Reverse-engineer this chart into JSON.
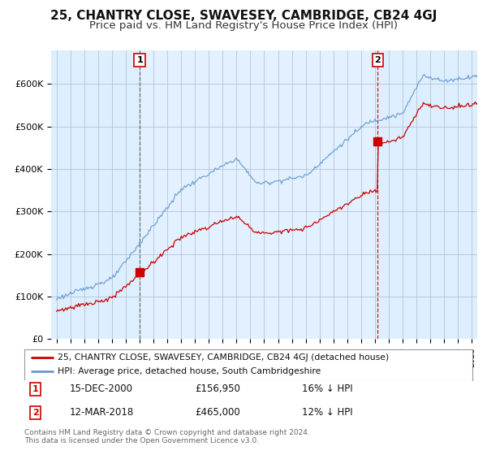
{
  "title": "25, CHANTRY CLOSE, SWAVESEY, CAMBRIDGE, CB24 4GJ",
  "subtitle": "Price paid vs. HM Land Registry's House Price Index (HPI)",
  "ylim": [
    0,
    680000
  ],
  "yticks": [
    0,
    100000,
    200000,
    300000,
    400000,
    500000,
    600000
  ],
  "ytick_labels": [
    "£0",
    "£100K",
    "£200K",
    "£300K",
    "£400K",
    "£500K",
    "£600K"
  ],
  "sale1_date": 2001.0,
  "sale1_price": 156950,
  "sale2_date": 2018.21,
  "sale2_price": 465000,
  "line_color_property": "#cc0000",
  "line_color_hpi": "#6699cc",
  "legend_label_property": "25, CHANTRY CLOSE, SWAVESEY, CAMBRIDGE, CB24 4GJ (detached house)",
  "legend_label_hpi": "HPI: Average price, detached house, South Cambridgeshire",
  "annotation1_date": "15-DEC-2000",
  "annotation1_price": "£156,950",
  "annotation1_hpi": "16% ↓ HPI",
  "annotation2_date": "12-MAR-2018",
  "annotation2_price": "£465,000",
  "annotation2_hpi": "12% ↓ HPI",
  "footer": "Contains HM Land Registry data © Crown copyright and database right 2024.\nThis data is licensed under the Open Government Licence v3.0.",
  "background_color": "#ffffff",
  "chart_bg_color": "#ddeeff",
  "grid_color": "#aabbcc",
  "title_fontsize": 11,
  "subtitle_fontsize": 9.5
}
